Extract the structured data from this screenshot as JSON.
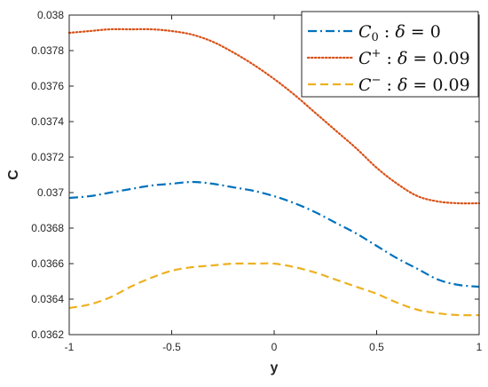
{
  "chart_data": {
    "type": "line",
    "title": "",
    "xlabel": "y",
    "ylabel": "C",
    "xlim": [
      -1,
      1
    ],
    "ylim": [
      0.0362,
      0.038
    ],
    "xticks": [
      -1,
      -0.5,
      0,
      0.5,
      1
    ],
    "xtick_labels": [
      "-1",
      "-0.5",
      "0",
      "0.5",
      "1"
    ],
    "yticks": [
      0.0362,
      0.0364,
      0.0366,
      0.0368,
      0.037,
      0.0372,
      0.0374,
      0.0376,
      0.0378,
      0.038
    ],
    "ytick_labels": [
      "0.0362",
      "0.0364",
      "0.0366",
      "0.0368",
      "0.037",
      "0.0372",
      "0.0374",
      "0.0376",
      "0.0378",
      "0.038"
    ],
    "grid": false,
    "legend_position": "top-right",
    "x": [
      -1,
      -0.9,
      -0.8,
      -0.7,
      -0.6,
      -0.5,
      -0.4,
      -0.3,
      -0.2,
      -0.1,
      0,
      0.1,
      0.2,
      0.3,
      0.4,
      0.5,
      0.6,
      0.7,
      0.8,
      0.9,
      1
    ],
    "series": [
      {
        "name": "C_0 : δ = 0",
        "legend_base": "C",
        "legend_sub": "0",
        "legend_rest": " : δ = 0",
        "color": "#0072BD",
        "dash": "dashdot",
        "values": [
          0.03697,
          0.03698,
          0.037,
          0.03702,
          0.03704,
          0.03705,
          0.03706,
          0.03705,
          0.03703,
          0.03701,
          0.03698,
          0.03694,
          0.03689,
          0.03683,
          0.03677,
          0.0367,
          0.03663,
          0.03657,
          0.03651,
          0.03648,
          0.03647
        ]
      },
      {
        "name": "C^+ : δ = 0.09",
        "legend_base": "C",
        "legend_sup": "+",
        "legend_rest": " : δ = 0.09",
        "color": "#D95319",
        "dash": "dotted",
        "values": [
          0.0379,
          0.03791,
          0.03792,
          0.03792,
          0.03792,
          0.03791,
          0.03789,
          0.03785,
          0.03779,
          0.03772,
          0.03764,
          0.03755,
          0.03745,
          0.03735,
          0.03725,
          0.03714,
          0.03705,
          0.03698,
          0.03695,
          0.03694,
          0.03694
        ]
      },
      {
        "name": "C^- : δ = 0.09",
        "legend_base": "C",
        "legend_sup": "−",
        "legend_rest": " : δ = 0.09",
        "color": "#EDB120",
        "dash": "dashed",
        "values": [
          0.03635,
          0.03637,
          0.03641,
          0.03647,
          0.03652,
          0.03656,
          0.03658,
          0.03659,
          0.0366,
          0.0366,
          0.0366,
          0.03658,
          0.03655,
          0.03651,
          0.03647,
          0.03643,
          0.03638,
          0.03634,
          0.03632,
          0.03631,
          0.03631
        ]
      }
    ]
  }
}
